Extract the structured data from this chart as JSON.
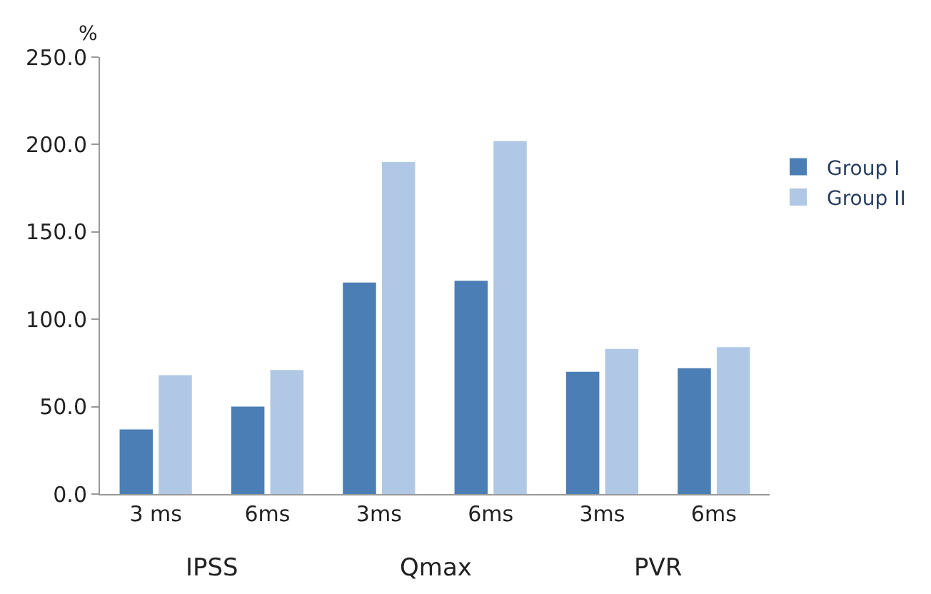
{
  "chart_data": {
    "type": "bar",
    "ylabel": "%",
    "categories": [
      "3 ms",
      "6ms",
      "3ms",
      "6ms",
      "3ms",
      "6ms"
    ],
    "series": [
      {
        "name": "Group I",
        "color": "#4a7eb4",
        "values": [
          37,
          50,
          121,
          122,
          70,
          72
        ]
      },
      {
        "name": "Group II",
        "color": "#b0c8e6",
        "values": [
          68,
          71,
          190,
          202,
          83,
          84
        ]
      }
    ],
    "ylim": [
      0,
      250
    ],
    "yticks": [
      {
        "value": 0,
        "label": "0.0"
      },
      {
        "value": 50,
        "label": "50.0"
      },
      {
        "value": 100,
        "label": "100.0"
      },
      {
        "value": 150,
        "label": "150.0"
      },
      {
        "value": 200,
        "label": "200.0"
      },
      {
        "value": 250,
        "label": "250.0"
      }
    ],
    "annotations": [
      "IPSS",
      "Qmax",
      "PVR"
    ],
    "grid": false,
    "legend": "right"
  }
}
